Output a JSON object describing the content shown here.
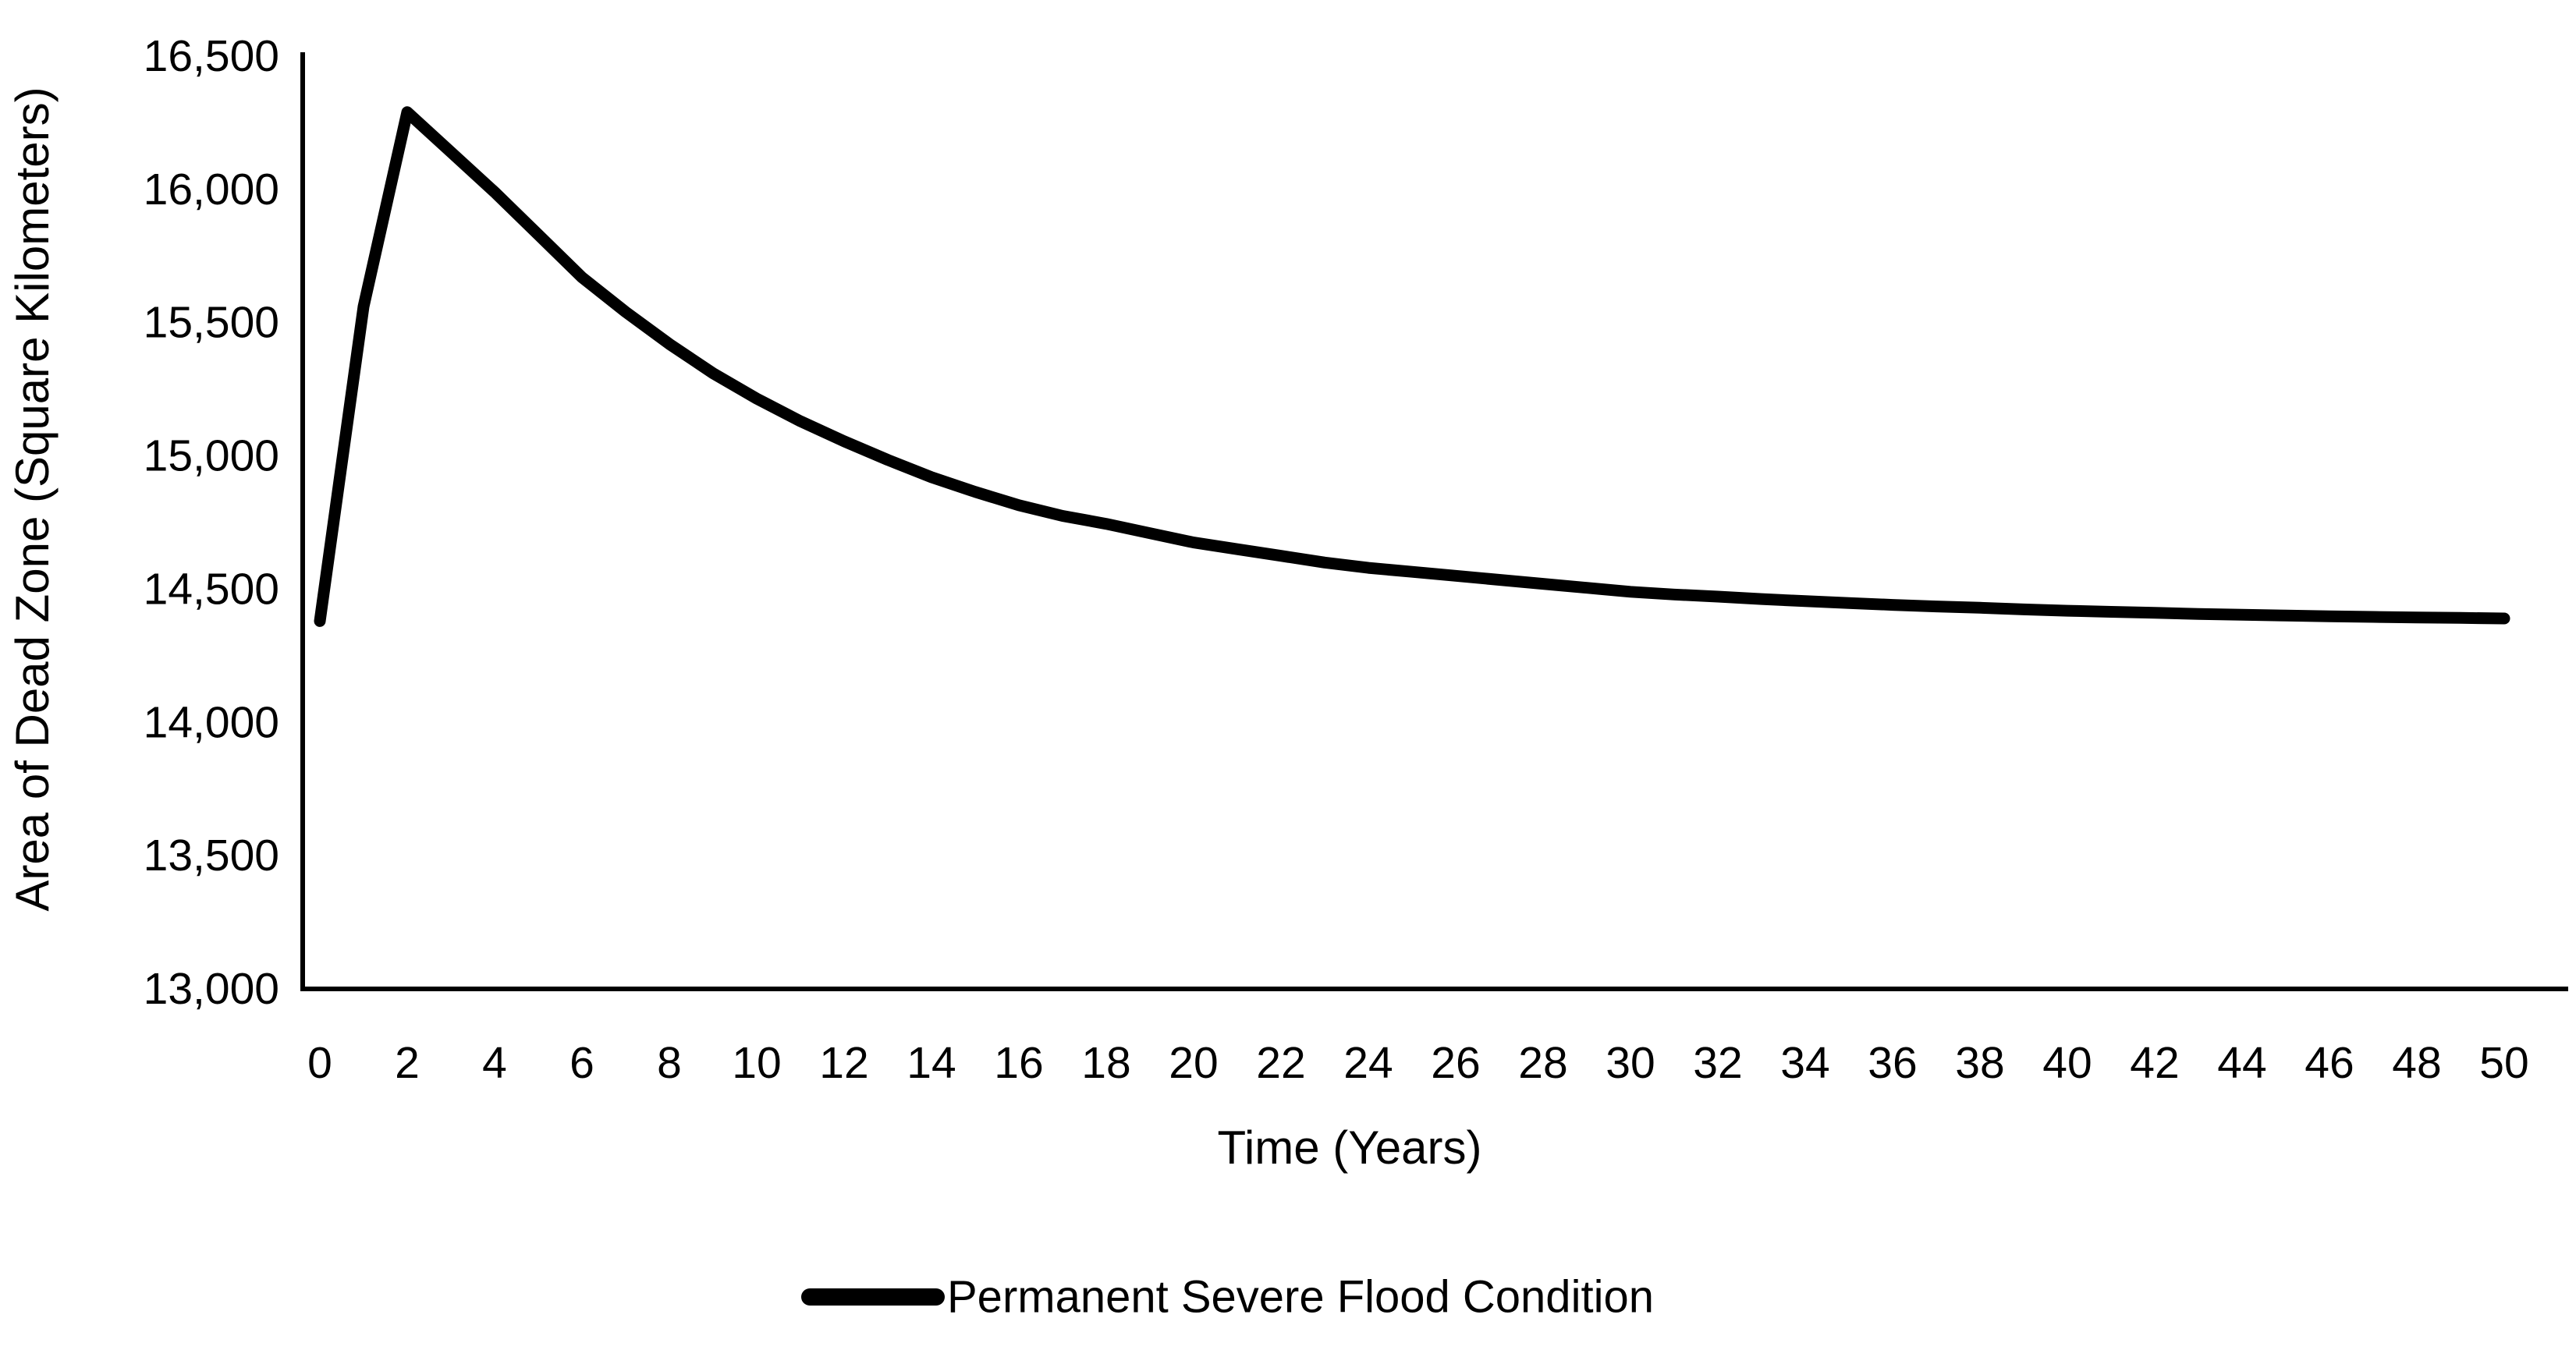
{
  "colors": {
    "background": "#ffffff",
    "axis": "#000000",
    "text": "#000000",
    "series_line": "#000000"
  },
  "chart_data": {
    "type": "line",
    "title": "",
    "xlabel": "Time (Years)",
    "ylabel": "Area of Dead Zone (Square Kilometers)",
    "xlim": [
      0,
      50
    ],
    "ylim": [
      13000,
      16500
    ],
    "grid": false,
    "legend_position": "bottom",
    "x_ticks": [
      0,
      2,
      4,
      6,
      8,
      10,
      12,
      14,
      16,
      18,
      20,
      22,
      24,
      26,
      28,
      30,
      32,
      34,
      36,
      38,
      40,
      42,
      44,
      46,
      48,
      50
    ],
    "y_ticks": [
      13000,
      13500,
      14000,
      14500,
      15000,
      15500,
      16000,
      16500
    ],
    "y_tick_labels": [
      "13,000",
      "13,500",
      "14,000",
      "14,500",
      "15,000",
      "15,500",
      "16,000",
      "16,500"
    ],
    "series": [
      {
        "name": "Permanent Severe Flood Condition",
        "color": "#000000",
        "stroke_width": 15,
        "x": [
          0,
          1,
          2,
          3,
          4,
          5,
          6,
          7,
          8,
          9,
          10,
          11,
          12,
          13,
          14,
          15,
          16,
          17,
          18,
          19,
          20,
          21,
          22,
          23,
          24,
          25,
          26,
          27,
          28,
          29,
          30,
          31,
          32,
          33,
          34,
          35,
          36,
          37,
          38,
          39,
          40,
          41,
          42,
          43,
          44,
          45,
          46,
          47,
          48,
          49,
          50
        ],
        "values": [
          14380,
          15560,
          16290,
          16140,
          15990,
          15830,
          15670,
          15540,
          15420,
          15310,
          15215,
          15130,
          15055,
          14985,
          14920,
          14865,
          14815,
          14775,
          14745,
          14710,
          14675,
          14650,
          14625,
          14600,
          14580,
          14565,
          14550,
          14535,
          14520,
          14505,
          14490,
          14480,
          14472,
          14463,
          14455,
          14448,
          14441,
          14435,
          14430,
          14424,
          14419,
          14415,
          14411,
          14407,
          14404,
          14401,
          14398,
          14396,
          14394,
          14392,
          14390
        ]
      }
    ]
  }
}
